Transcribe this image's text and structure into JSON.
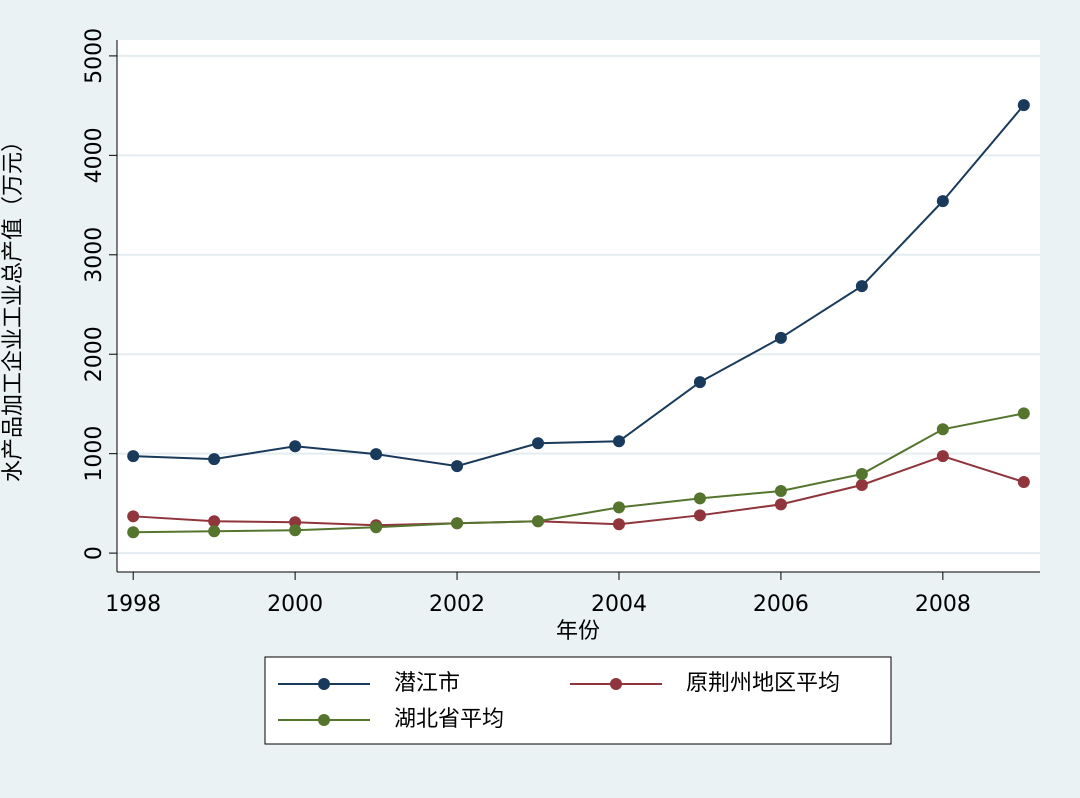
{
  "chart_data": {
    "type": "line",
    "x_label": "年份",
    "y_label": "水产品加工企业工业总产值（万元）",
    "x": [
      1998,
      1999,
      2000,
      2001,
      2002,
      2003,
      2004,
      2005,
      2006,
      2007,
      2008,
      2009
    ],
    "series": [
      {
        "name": "潜江市",
        "color": "#1a3a5c",
        "values": [
          975,
          945,
          1075,
          995,
          875,
          1105,
          1125,
          1720,
          2165,
          2685,
          3540,
          4505
        ]
      },
      {
        "name": "原荆州地区平均",
        "color": "#90353b",
        "values": [
          370,
          320,
          310,
          280,
          300,
          320,
          290,
          380,
          490,
          685,
          975,
          715
        ]
      },
      {
        "name": "湖北省平均",
        "color": "#55752f",
        "values": [
          210,
          220,
          230,
          260,
          300,
          320,
          460,
          550,
          625,
          795,
          1245,
          1405
        ]
      }
    ],
    "xlim": [
      1997.8,
      2009.2
    ],
    "xticks": [
      1998,
      2000,
      2002,
      2004,
      2006,
      2008
    ],
    "ylim": [
      -190,
      5160
    ],
    "yticks": [
      0,
      1000,
      2000,
      3000,
      4000,
      5000
    ],
    "grid": true
  }
}
